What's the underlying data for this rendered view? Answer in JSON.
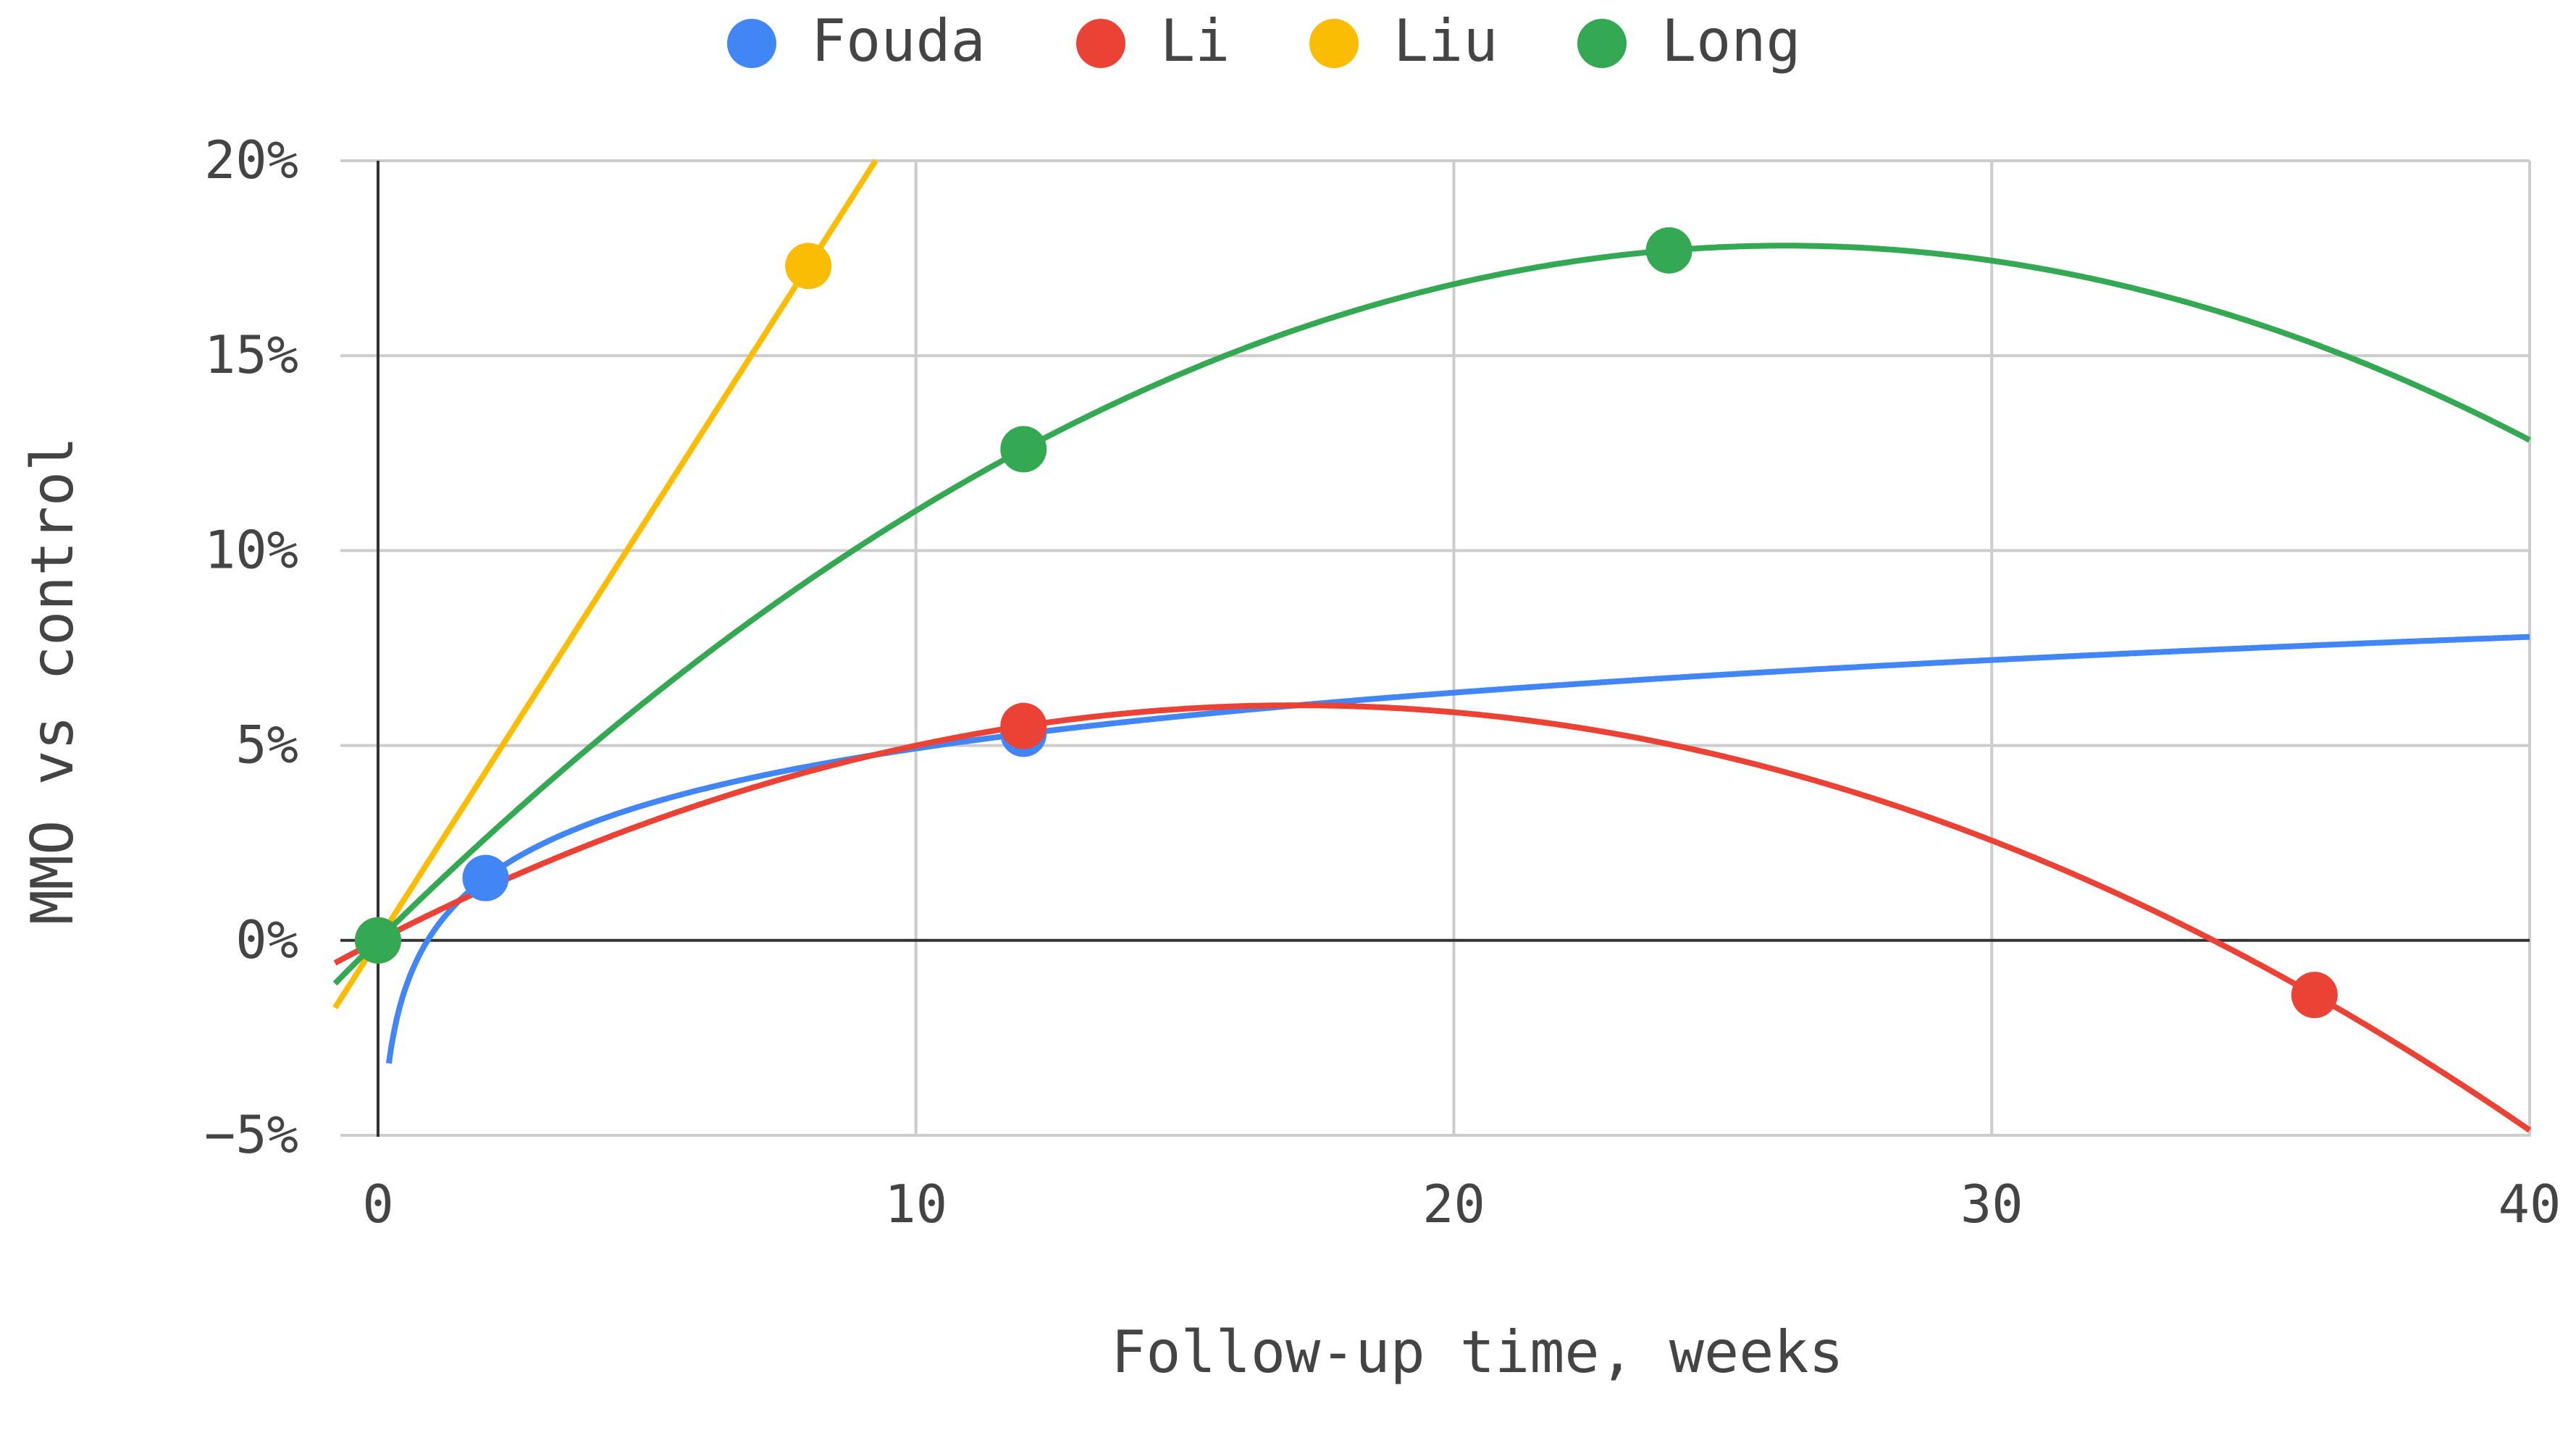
{
  "chart_data": {
    "type": "scatter",
    "title": "",
    "xlabel": "Follow-up time, weeks",
    "ylabel": "MMO vs control",
    "xlim": [
      0,
      40
    ],
    "ylim": [
      -5,
      20
    ],
    "x_ticks": [
      {
        "value": 0,
        "label": "0"
      },
      {
        "value": 10,
        "label": "10"
      },
      {
        "value": 20,
        "label": "20"
      },
      {
        "value": 30,
        "label": "30"
      },
      {
        "value": 40,
        "label": "40"
      }
    ],
    "y_ticks": [
      {
        "value": -5,
        "label": "−5%"
      },
      {
        "value": 0,
        "label": "0%"
      },
      {
        "value": 5,
        "label": "5%"
      },
      {
        "value": 10,
        "label": "10%"
      },
      {
        "value": 15,
        "label": "15%"
      },
      {
        "value": 20,
        "label": "20%"
      }
    ],
    "grid": true,
    "legend_position": "top",
    "series": [
      {
        "name": "Fouda",
        "color": "#4285F4",
        "points": [
          {
            "x": 0,
            "y": 0
          },
          {
            "x": 2,
            "y": 1.6
          },
          {
            "x": 12,
            "y": 5.3
          }
        ],
        "trendline": "logarithmic"
      },
      {
        "name": "Li",
        "color": "#EA4335",
        "points": [
          {
            "x": 0,
            "y": 0
          },
          {
            "x": 12,
            "y": 5.5
          },
          {
            "x": 36,
            "y": -1.4
          }
        ],
        "trendline": "polynomial"
      },
      {
        "name": "Liu",
        "color": "#FBBC04",
        "points": [
          {
            "x": 0,
            "y": 0
          },
          {
            "x": 8,
            "y": 17.3
          }
        ],
        "trendline": "linear"
      },
      {
        "name": "Long",
        "color": "#34A853",
        "points": [
          {
            "x": 0,
            "y": 0
          },
          {
            "x": 12,
            "y": 12.6
          },
          {
            "x": 24,
            "y": 17.7
          }
        ],
        "trendline": "polynomial"
      }
    ]
  }
}
